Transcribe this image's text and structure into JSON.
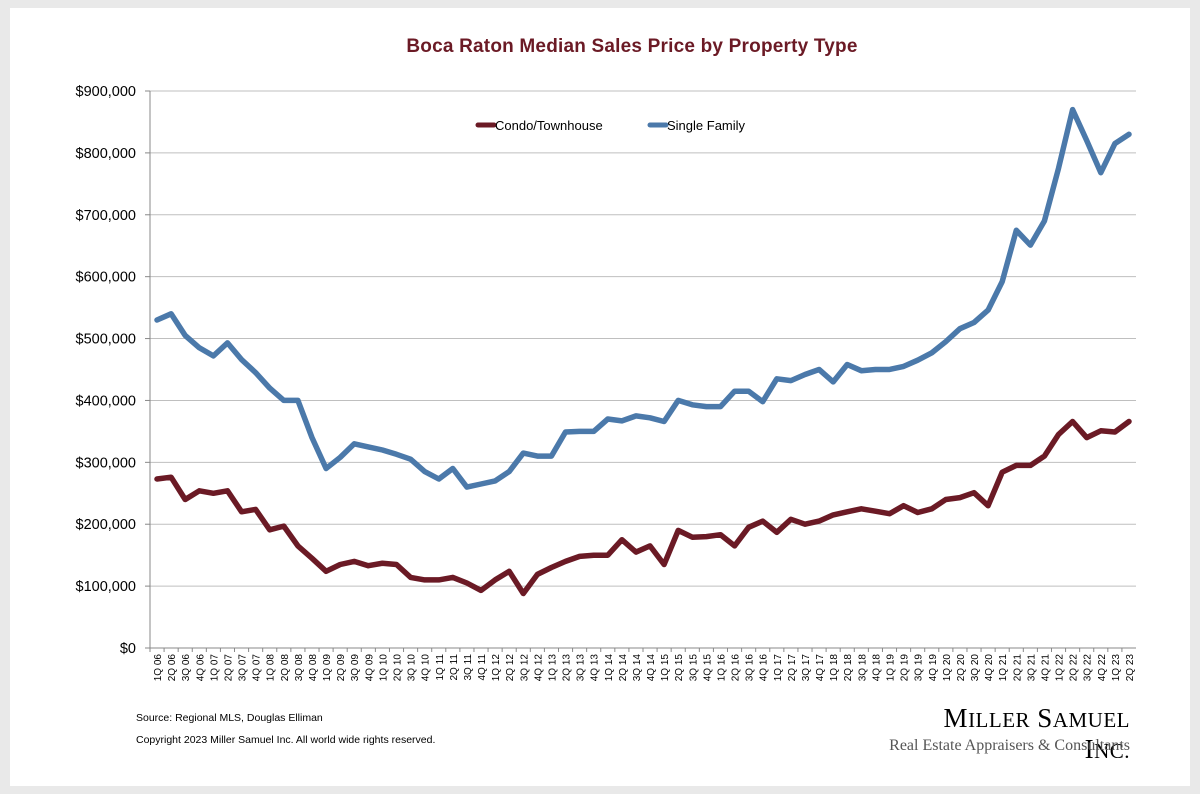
{
  "colors": {
    "condo": "#6b1a25",
    "single_family": "#4b79aa",
    "title": "#6b1a25",
    "grid": "#bfbfbf"
  },
  "footer": {
    "source": "Source: Regional MLS, Douglas Elliman",
    "copyright": "Copyright 2023 Miller Samuel Inc.  All world wide rights reserved."
  },
  "logo": {
    "name_cap1": "M",
    "name_rest1": "ILLER",
    "name_cap2": "S",
    "name_rest2": "AMUEL",
    "name_cap3": "I",
    "name_rest3": "NC.",
    "tagline": "Real Estate Appraisers & Consultants"
  },
  "chart_data": {
    "type": "line",
    "title": "Boca Raton Median Sales Price by Property Type",
    "xlabel": "",
    "ylabel": "",
    "ylim": [
      0,
      900000
    ],
    "yticks": [
      "$0",
      "$100,000",
      "$200,000",
      "$300,000",
      "$400,000",
      "$500,000",
      "$600,000",
      "$700,000",
      "$800,000",
      "$900,000"
    ],
    "grid": true,
    "legend_position": "top-center",
    "categories": [
      "1Q 06",
      "2Q 06",
      "3Q 06",
      "4Q 06",
      "1Q 07",
      "2Q 07",
      "3Q 07",
      "4Q 07",
      "1Q 08",
      "2Q 08",
      "3Q 08",
      "4Q 08",
      "1Q 09",
      "2Q 09",
      "3Q 09",
      "4Q 09",
      "1Q 10",
      "2Q 10",
      "3Q 10",
      "4Q 10",
      "1Q 11",
      "2Q 11",
      "3Q 11",
      "4Q 11",
      "1Q 12",
      "2Q 12",
      "3Q 12",
      "4Q 12",
      "1Q 13",
      "2Q 13",
      "3Q 13",
      "4Q 13",
      "1Q 14",
      "2Q 14",
      "3Q 14",
      "4Q 14",
      "1Q 15",
      "2Q 15",
      "3Q 15",
      "4Q 15",
      "1Q 16",
      "2Q 16",
      "3Q 16",
      "4Q 16",
      "1Q 17",
      "2Q 17",
      "3Q 17",
      "4Q 17",
      "1Q 18",
      "2Q 18",
      "3Q 18",
      "4Q 18",
      "1Q 19",
      "2Q 19",
      "3Q 19",
      "4Q 19",
      "1Q 20",
      "2Q 20",
      "3Q 20",
      "4Q 20",
      "1Q 21",
      "2Q 21",
      "3Q 21",
      "4Q 21",
      "1Q 22",
      "2Q 22",
      "3Q 22",
      "4Q 22",
      "1Q 23",
      "2Q 23"
    ],
    "series": [
      {
        "name": "Condo/Townhouse",
        "color": "#6b1a25",
        "values": [
          273000,
          276000,
          240000,
          254000,
          250000,
          254000,
          220000,
          224000,
          191000,
          197000,
          165000,
          145000,
          124000,
          135000,
          140000,
          133000,
          137000,
          135000,
          114000,
          110000,
          110000,
          114000,
          105000,
          93000,
          110000,
          124000,
          88000,
          119000,
          130000,
          140000,
          148000,
          150000,
          150000,
          175000,
          155000,
          165000,
          135000,
          190000,
          179000,
          180000,
          183000,
          165000,
          195000,
          205000,
          187000,
          208000,
          200000,
          205000,
          215000,
          220000,
          225000,
          221000,
          217000,
          230000,
          219000,
          225000,
          240000,
          243000,
          251000,
          230000,
          284000,
          295000,
          295000,
          310000,
          345000,
          366000,
          340000,
          351000,
          349000,
          366000
        ]
      },
      {
        "name": "Single Family",
        "color": "#4b79aa",
        "values": [
          530000,
          540000,
          505000,
          485000,
          472000,
          493000,
          466000,
          445000,
          420000,
          400000,
          400000,
          340000,
          290000,
          308000,
          330000,
          325000,
          320000,
          313000,
          305000,
          285000,
          273000,
          290000,
          260000,
          265000,
          270000,
          285000,
          315000,
          310000,
          310000,
          349000,
          350000,
          350000,
          370000,
          367000,
          375000,
          372000,
          366000,
          400000,
          393000,
          390000,
          390000,
          415000,
          415000,
          398000,
          435000,
          432000,
          442000,
          450000,
          430000,
          458000,
          448000,
          450000,
          450000,
          455000,
          465000,
          477000,
          495000,
          516000,
          526000,
          546000,
          592000,
          675000,
          651000,
          690000,
          775000,
          870000,
          820000,
          768000,
          815000,
          830000
        ]
      }
    ]
  }
}
